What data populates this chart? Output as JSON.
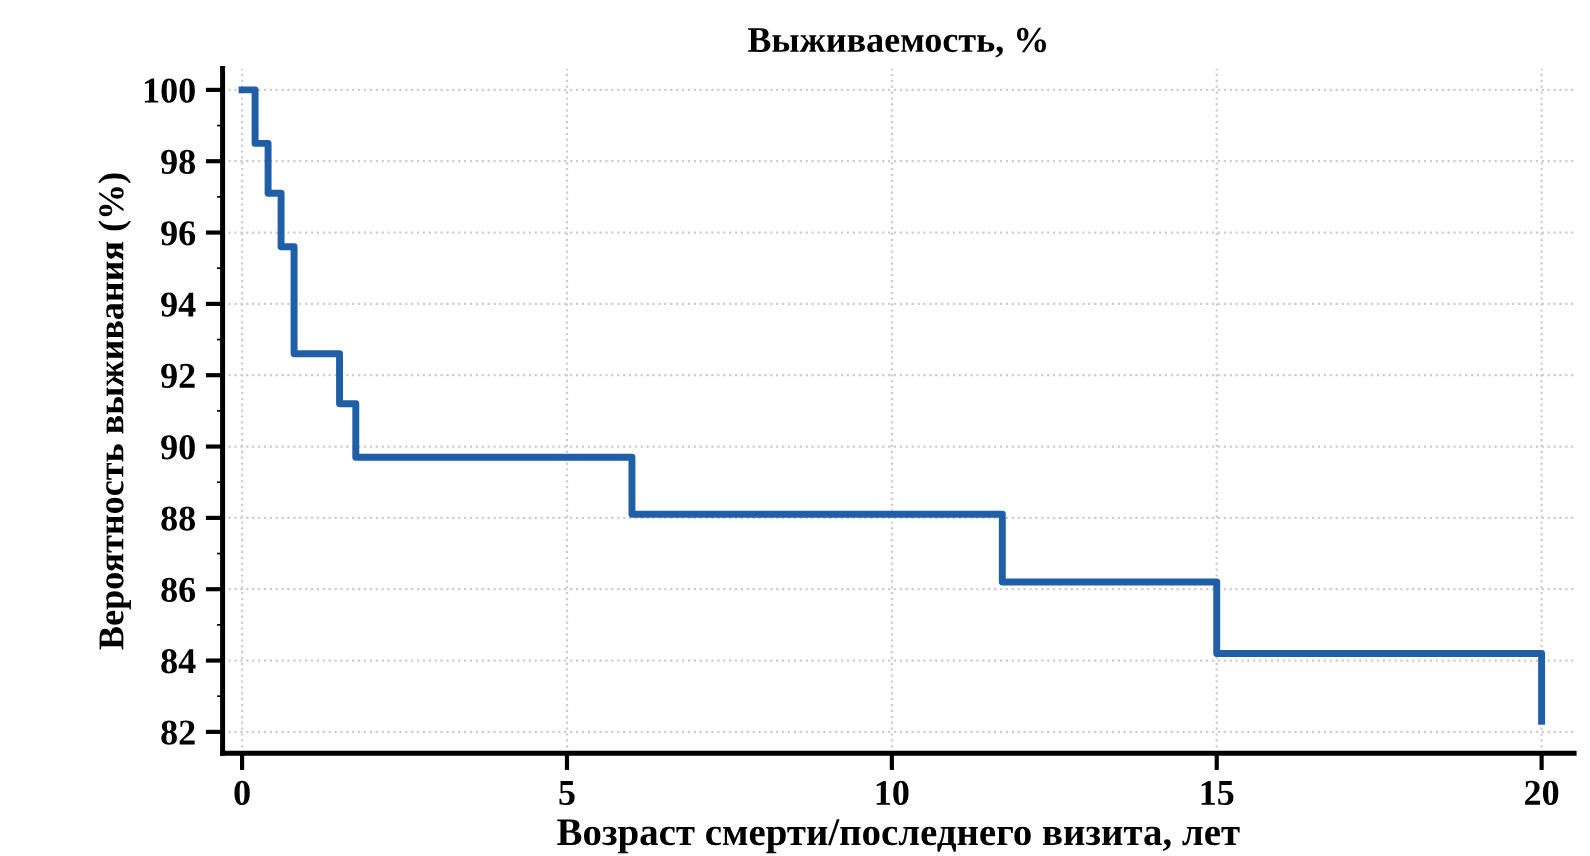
{
  "chart_data": {
    "type": "step",
    "title": "Выживаемость, %",
    "xlabel": "Возраст смерти/последнего визита, лет",
    "ylabel": "Вероятность выживания (%)",
    "series": [
      {
        "color": "#1f5fa8",
        "x": [
          0,
          0.2,
          0.4,
          0.6,
          0.8,
          1.5,
          1.75,
          6.0,
          11.7,
          15.0,
          20.0
        ],
        "values": [
          100,
          98.5,
          97.1,
          95.6,
          92.6,
          91.2,
          89.7,
          88.1,
          86.2,
          84.2,
          82.3
        ]
      }
    ],
    "xlim": [
      -0.3,
      20.5
    ],
    "xticks": [
      0,
      5,
      10,
      15,
      20
    ],
    "ylim": [
      81.4,
      100.6
    ],
    "yticks": [
      82,
      84,
      86,
      88,
      90,
      92,
      94,
      96,
      98,
      100
    ],
    "grid": true,
    "line_style": "solid"
  }
}
